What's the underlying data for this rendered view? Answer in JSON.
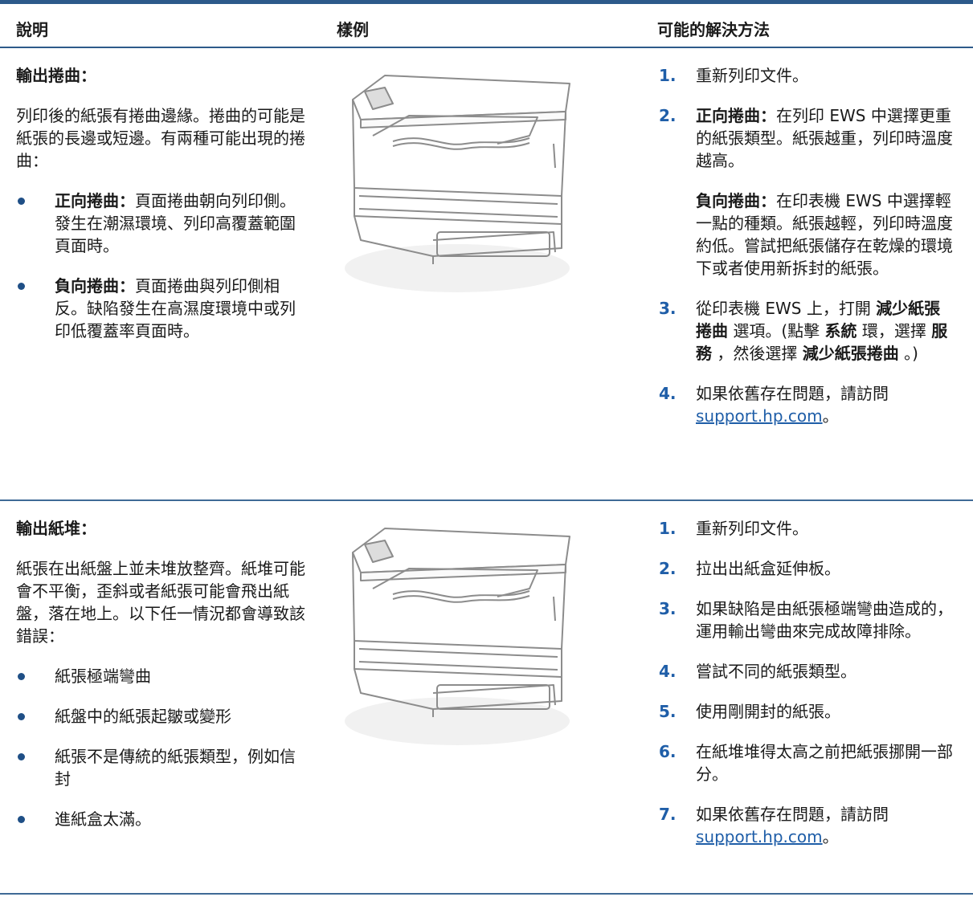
{
  "table": {
    "header": [
      "說明",
      "樣例",
      "可能的解決方法"
    ],
    "rows": [
      {
        "title": "輸出捲曲：",
        "description": "列印後的紙張有捲曲邊緣。捲曲的可能是紙張的長邊或短邊。有兩種可能出現的捲曲：",
        "bullets": [
          [
            {
              "b": "正向捲曲："
            },
            {
              "t": "頁面捲曲朝向列印側。發生在潮濕環境、列印高覆蓋範圍頁面時。"
            }
          ],
          [
            {
              "b": "負向捲曲："
            },
            {
              "t": "頁面捲曲與列印側相反。缺陷發生在高濕度環境中或列印低覆蓋率頁面時。"
            }
          ]
        ],
        "steps": [
          {
            "number": "1.",
            "paragraphs": [
              [
                {
                  "t": "重新列印文件。"
                }
              ]
            ]
          },
          {
            "number": "2.",
            "paragraphs": [
              [
                {
                  "b": "正向捲曲："
                },
                {
                  "t": "在列印 EWS 中選擇更重的紙張類型。紙張越重，列印時溫度越高。"
                }
              ],
              [
                {
                  "b": "負向捲曲："
                },
                {
                  "t": "在印表機 EWS 中選擇輕一點的種類。紙張越輕，列印時溫度約低。嘗試把紙張儲存在乾燥的環境下或者使用新拆封的紙張。"
                }
              ]
            ]
          },
          {
            "number": "3.",
            "paragraphs": [
              [
                {
                  "t": "從印表機 EWS 上，打開 "
                },
                {
                  "b": "減少紙張捲曲"
                },
                {
                  "t": " 選項。(點擊 "
                },
                {
                  "b": "系統"
                },
                {
                  "t": " 環，選擇 "
                },
                {
                  "b": "服務"
                },
                {
                  "t": " ，然後選擇 "
                },
                {
                  "b": "減少紙張捲曲"
                },
                {
                  "t": " 。)"
                }
              ]
            ]
          },
          {
            "number": "4.",
            "paragraphs": [
              [
                {
                  "t": "如果依舊存在問題，請訪問 "
                },
                {
                  "link": "support.hp.com"
                },
                {
                  "t": "。"
                }
              ]
            ]
          }
        ]
      },
      {
        "title": "輸出紙堆：",
        "description": "紙張在出紙盤上並未堆放整齊。紙堆可能會不平衡，歪斜或者紙張可能會飛出紙盤，落在地上。以下任一情況都會導致該錯誤：",
        "bullets": [
          [
            {
              "t": "紙張極端彎曲"
            }
          ],
          [
            {
              "t": "紙盤中的紙張起皺或變形"
            }
          ],
          [
            {
              "t": "紙張不是傳統的紙張類型，例如信封"
            }
          ],
          [
            {
              "t": "進紙盒太滿。"
            }
          ]
        ],
        "steps": [
          {
            "number": "1.",
            "paragraphs": [
              [
                {
                  "t": "重新列印文件。"
                }
              ]
            ]
          },
          {
            "number": "2.",
            "paragraphs": [
              [
                {
                  "t": "拉出出紙盒延伸板。"
                }
              ]
            ]
          },
          {
            "number": "3.",
            "paragraphs": [
              [
                {
                  "t": "如果缺陷是由紙張極端彎曲造成的，運用輸出彎曲來完成故障排除。"
                }
              ]
            ]
          },
          {
            "number": "4.",
            "paragraphs": [
              [
                {
                  "t": "嘗試不同的紙張類型。"
                }
              ]
            ]
          },
          {
            "number": "5.",
            "paragraphs": [
              [
                {
                  "t": "使用剛開封的紙張。"
                }
              ]
            ]
          },
          {
            "number": "6.",
            "paragraphs": [
              [
                {
                  "t": "在紙堆堆得太高之前把紙張挪開一部分。"
                }
              ]
            ]
          },
          {
            "number": "7.",
            "paragraphs": [
              [
                {
                  "t": "如果依舊存在問題，請訪問 "
                },
                {
                  "link": "support.hp.com"
                },
                {
                  "t": "。"
                }
              ]
            ]
          }
        ]
      }
    ]
  }
}
